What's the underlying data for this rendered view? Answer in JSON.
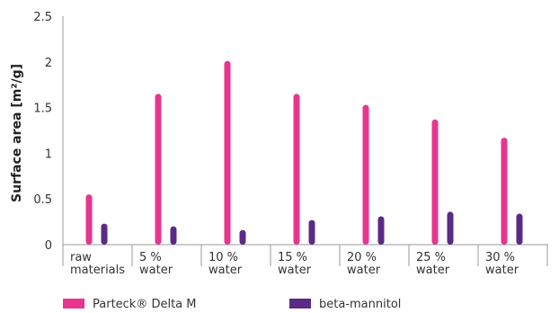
{
  "chart_data": {
    "type": "bar",
    "categories": [
      [
        "raw",
        "materials"
      ],
      [
        "5 %",
        "water"
      ],
      [
        "10 %",
        "water"
      ],
      [
        "15 %",
        "water"
      ],
      [
        "20 %",
        "water"
      ],
      [
        "25 %",
        "water"
      ],
      [
        "30 %",
        "water"
      ]
    ],
    "series": [
      {
        "name": "Parteck® Delta M",
        "color": "#e8358f",
        "values": [
          0.55,
          1.65,
          2.01,
          1.65,
          1.53,
          1.37,
          1.17
        ]
      },
      {
        "name": "beta-mannitol",
        "color": "#5b2a86",
        "values": [
          0.23,
          0.2,
          0.16,
          0.27,
          0.31,
          0.36,
          0.34
        ]
      }
    ],
    "ylabel": "Surface area [m²/g]",
    "xlabel": "",
    "ylim": [
      0,
      2.5
    ],
    "yticks": [
      "0",
      "0.5",
      "1",
      "1.5",
      "2",
      "2.5"
    ],
    "grid": false,
    "legend_position": "bottom"
  }
}
